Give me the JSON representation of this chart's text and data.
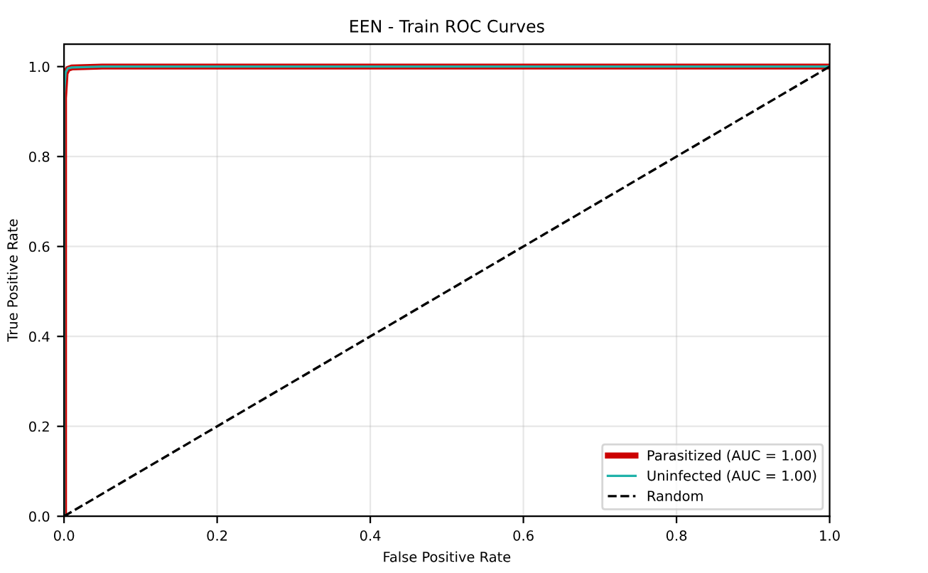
{
  "chart_data": {
    "type": "line",
    "title": "EEN - Train ROC Curves",
    "xlabel": "False Positive Rate",
    "ylabel": "True Positive Rate",
    "series": [
      {
        "name": "Parasitized (AUC = 1.00)",
        "color": "#cc0000",
        "x": [
          0,
          0,
          0.002,
          0.005,
          0.01,
          0.05,
          1
        ],
        "values": [
          0,
          0.93,
          0.985,
          0.995,
          0.998,
          1.0,
          1.0
        ]
      },
      {
        "name": "Uninfected (AUC = 1.00)",
        "color": "#20b2aa",
        "x": [
          0,
          0,
          0.002,
          0.005,
          0.01,
          0.05,
          1
        ],
        "values": [
          0,
          0.94,
          0.987,
          0.996,
          0.998,
          1.0,
          1.0
        ]
      },
      {
        "name": "Random",
        "color": "#000000",
        "line_style": "dashed",
        "x": [
          0,
          1
        ],
        "values": [
          0,
          1
        ]
      }
    ],
    "xlim": [
      0,
      1
    ],
    "ylim": [
      0,
      1.05
    ],
    "xticks": [
      {
        "value": 0,
        "label": "0.0"
      },
      {
        "value": 0.2,
        "label": "0.2"
      },
      {
        "value": 0.4,
        "label": "0.4"
      },
      {
        "value": 0.6,
        "label": "0.6"
      },
      {
        "value": 0.8,
        "label": "0.8"
      },
      {
        "value": 1,
        "label": "1.0"
      }
    ],
    "yticks": [
      {
        "value": 0,
        "label": "0.0"
      },
      {
        "value": 0.2,
        "label": "0.2"
      },
      {
        "value": 0.4,
        "label": "0.4"
      },
      {
        "value": 0.6,
        "label": "0.6"
      },
      {
        "value": 0.8,
        "label": "0.8"
      },
      {
        "value": 1,
        "label": "1.0"
      }
    ],
    "grid": true,
    "legend": "lower right",
    "line_style": "solid"
  }
}
